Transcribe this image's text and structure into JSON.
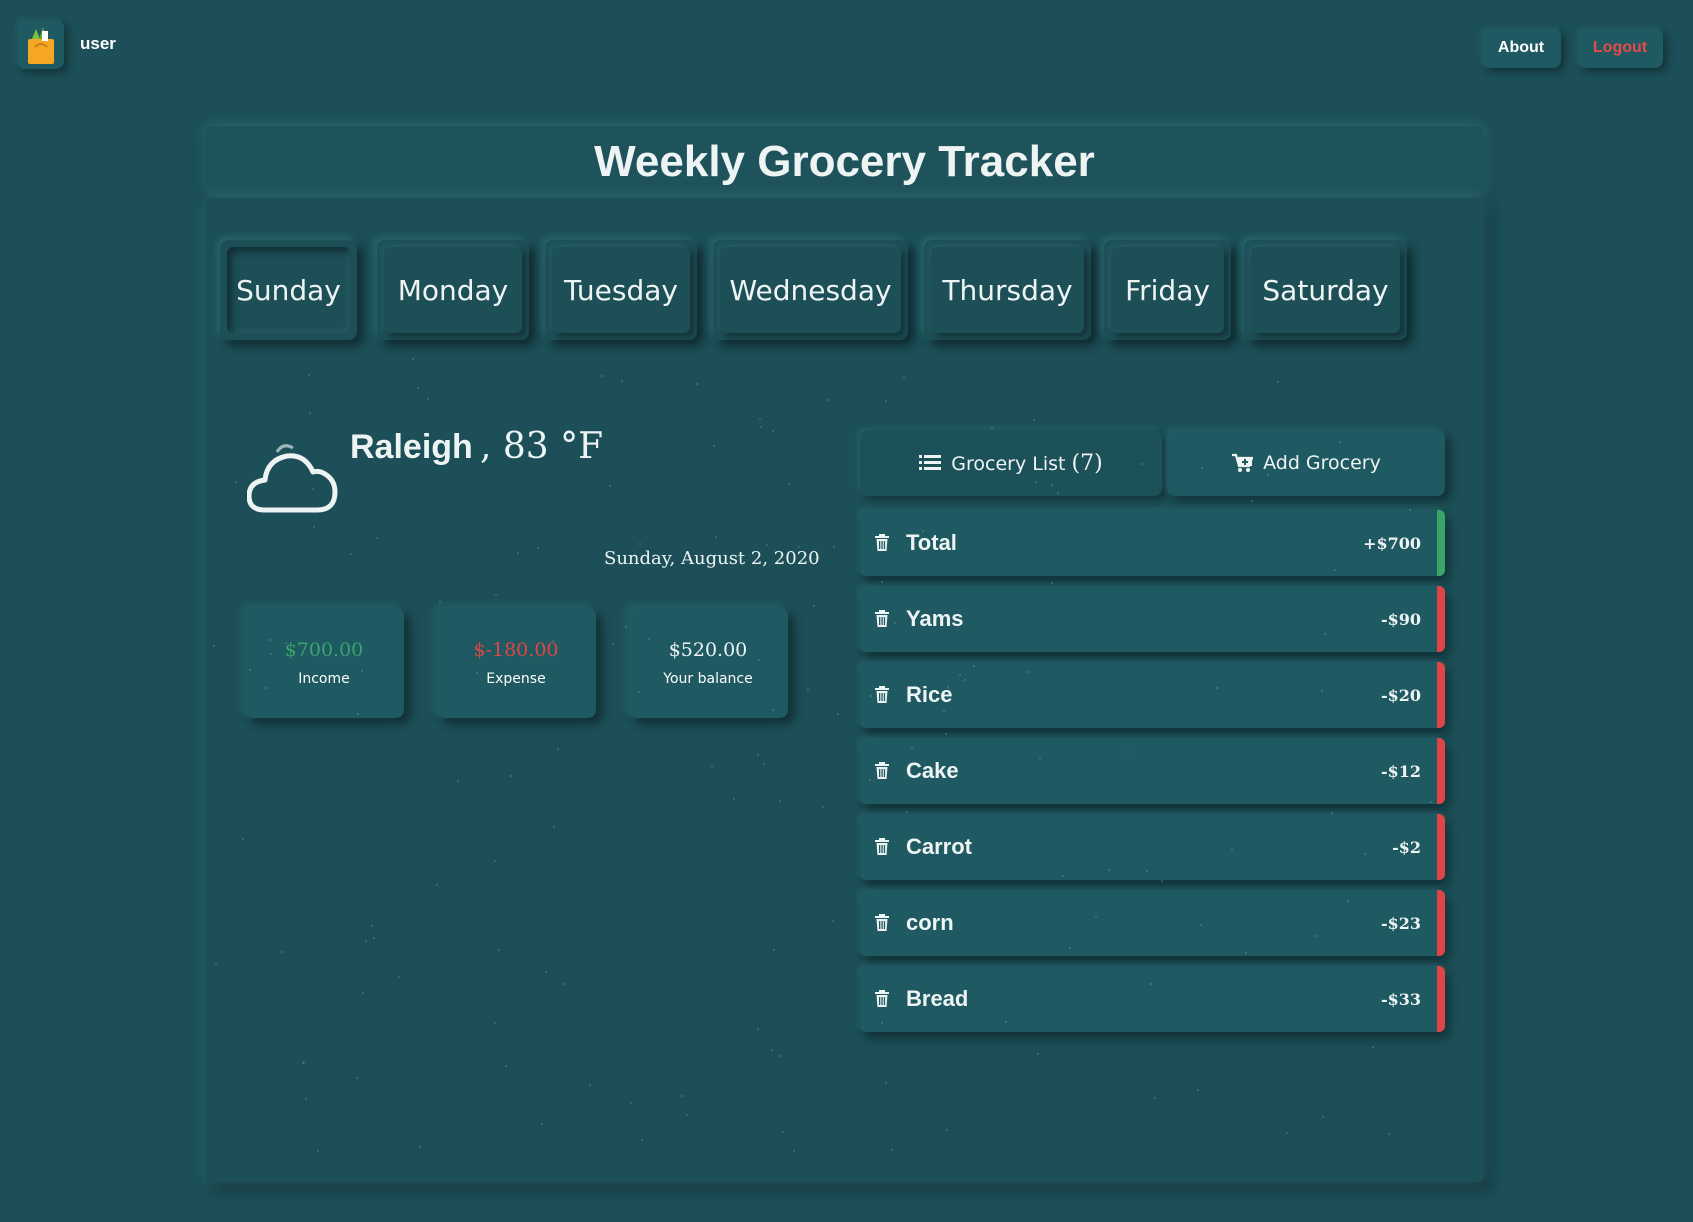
{
  "app": {
    "user": "user"
  },
  "nav": {
    "about": "About",
    "logout": "Logout"
  },
  "title": "Weekly Grocery Tracker",
  "days": [
    "Sunday",
    "Monday",
    "Tuesday",
    "Wednesday",
    "Thursday",
    "Friday",
    "Saturday"
  ],
  "active_day": "Sunday",
  "weather": {
    "city": "Raleigh",
    "temp": ", 83 °F",
    "icon": "cloud-icon"
  },
  "date": "Sunday, August 2, 2020",
  "summary": {
    "income": {
      "amount": "$700.00",
      "label": "Income"
    },
    "expense": {
      "amount": "$-180.00",
      "label": "Expense"
    },
    "balance": {
      "amount": "$520.00",
      "label": "Your balance"
    }
  },
  "tabs": {
    "grocery_list": "Grocery List",
    "count": "(7)",
    "add": "Add Grocery"
  },
  "items": [
    {
      "name": "Total",
      "amount": "+$700",
      "type": "income"
    },
    {
      "name": "Yams",
      "amount": "-$90",
      "type": "expense"
    },
    {
      "name": "Rice",
      "amount": "-$20",
      "type": "expense"
    },
    {
      "name": "Cake",
      "amount": "-$12",
      "type": "expense"
    },
    {
      "name": "Carrot",
      "amount": "-$2",
      "type": "expense"
    },
    {
      "name": "corn",
      "amount": "-$23",
      "type": "expense"
    },
    {
      "name": "Bread",
      "amount": "-$33",
      "type": "expense"
    }
  ],
  "colors": {
    "background": "#1c4f57",
    "income": "#3aa56a",
    "expense": "#e04545",
    "text": "#eef4f4"
  }
}
